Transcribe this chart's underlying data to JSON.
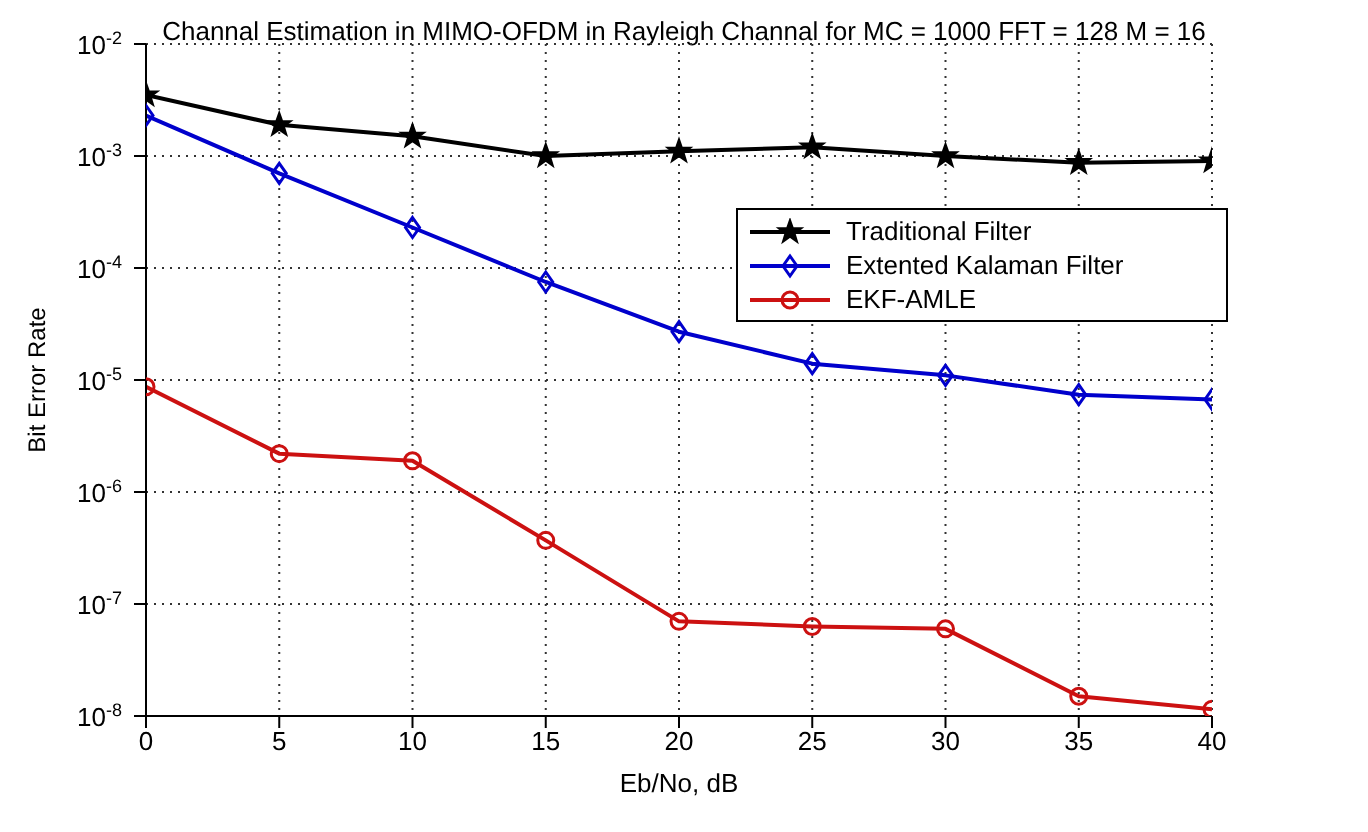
{
  "chart_data": {
    "type": "line",
    "title": "Channal Estimation in MIMO-OFDM in Rayleigh Channal for MC = 1000 FFT = 128 M = 16",
    "xlabel": "Eb/No, dB",
    "ylabel": "Bit Error Rate",
    "x": [
      0,
      5,
      10,
      15,
      20,
      25,
      30,
      35,
      40
    ],
    "series": [
      {
        "name": "Traditional Filter",
        "color": "#000000",
        "marker": "star",
        "values": [
          0.0035,
          0.0019,
          0.0015,
          0.001,
          0.0011,
          0.0012,
          0.001,
          0.00087,
          0.0009
        ]
      },
      {
        "name": "Extented Kalaman Filter",
        "color": "#0000cc",
        "marker": "diamond",
        "values": [
          0.0023,
          0.0007,
          0.00023,
          7.5e-05,
          2.7e-05,
          1.4e-05,
          1.1e-05,
          7.4e-06,
          6.7e-06
        ]
      },
      {
        "name": "EKF-AMLE",
        "color": "#cc1111",
        "marker": "circle",
        "values": [
          8.7e-06,
          2.2e-06,
          1.9e-06,
          3.7e-07,
          7e-08,
          6.3e-08,
          6e-08,
          1.5e-08,
          1.15e-08
        ]
      }
    ],
    "xlim": [
      0,
      40
    ],
    "xticks": [
      0,
      5,
      10,
      15,
      20,
      25,
      30,
      35,
      40
    ],
    "ylim": [
      1e-08,
      0.01
    ],
    "log": true,
    "yticks": [
      {
        "value": 1e-08,
        "label": "10$^{-8}$"
      },
      {
        "value": 1e-07,
        "label": "10$^{-7}$"
      },
      {
        "value": 1e-06,
        "label": "10$^{-6}$"
      },
      {
        "value": 1e-05,
        "label": "10$^{-5}$"
      },
      {
        "value": 0.0001,
        "label": "10$^{-4}$"
      },
      {
        "value": 0.001,
        "label": "10$^{-3}$"
      },
      {
        "value": 0.01,
        "label": "10$^{-2}$"
      }
    ],
    "grid": true,
    "legend": "top right",
    "line_style": "solid"
  }
}
